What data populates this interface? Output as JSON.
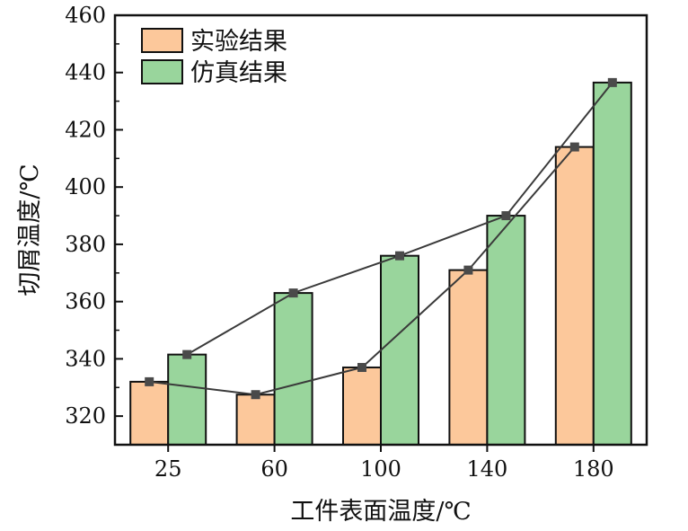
{
  "chart_data": {
    "type": "bar",
    "xlabel": "工件表面温度/℃",
    "ylabel": "切屑温度/℃",
    "ylim": [
      310,
      460
    ],
    "yticks": [
      320,
      340,
      360,
      380,
      400,
      420,
      440,
      460
    ],
    "categories": [
      "25",
      "60",
      "100",
      "140",
      "180"
    ],
    "series": [
      {
        "name": "实验结果",
        "values": [
          332,
          327.5,
          337,
          371,
          414
        ],
        "color": "#fcc89b",
        "line_color": "#3a3a3a"
      },
      {
        "name": "仿真结果",
        "values": [
          341.5,
          363,
          376,
          390,
          436.5
        ],
        "color": "#99d59c",
        "line_color": "#3a3a3a"
      }
    ],
    "legend_position": "top-left",
    "overlay_lines": true,
    "grid": false
  }
}
